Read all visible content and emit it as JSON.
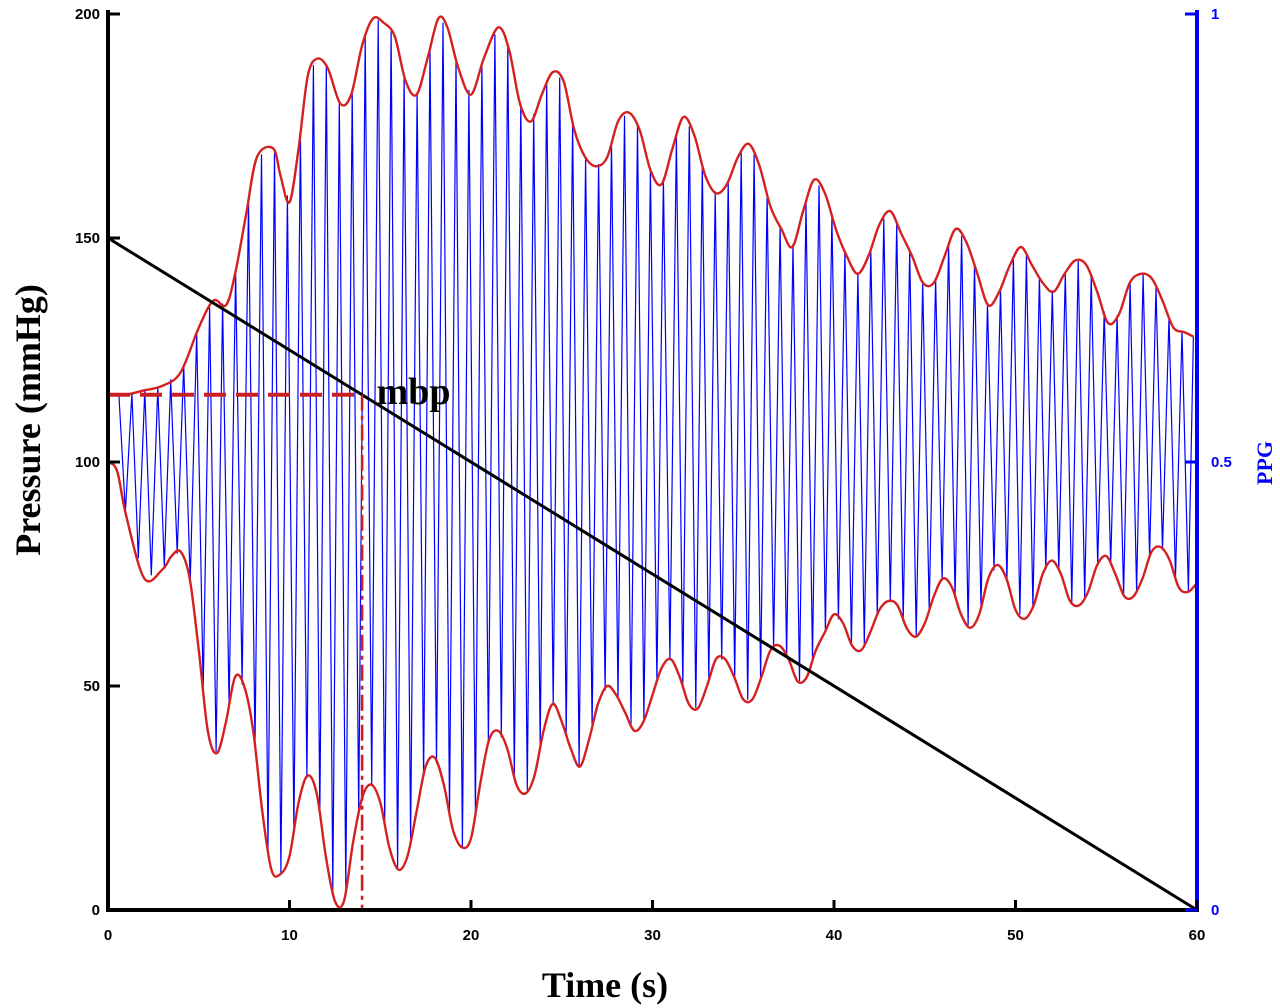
{
  "chart_data": {
    "type": "line",
    "title": "",
    "xlabel": "Time (s)",
    "ylabel": "Pressure (mmHg)",
    "y2label": "PPG",
    "xlim": [
      0,
      60
    ],
    "ylim": [
      0,
      200
    ],
    "y2lim": [
      0,
      1
    ],
    "x_ticks": [
      0,
      10,
      20,
      30,
      40,
      50,
      60
    ],
    "y_ticks": [
      0,
      50,
      100,
      150,
      200
    ],
    "y2_ticks": [
      0,
      0.5,
      1
    ],
    "grid": false,
    "annotations": [
      {
        "text": "mbp",
        "x": 14.8,
        "y": 113
      }
    ],
    "colors": {
      "ppg": "#0000ff",
      "envelope": "#d42020",
      "cuff_pressure": "#000000",
      "mbp_marker": "#cc1f1f",
      "left_axis": "#000000",
      "right_axis": "#0000ff"
    },
    "series": [
      {
        "type": "line",
        "x": [
          0,
          60
        ],
        "y": [
          150,
          0
        ]
      },
      {
        "type": "line",
        "x": [
          0,
          0.5,
          1,
          2,
          3,
          4,
          5,
          5.8,
          6.5,
          7,
          7.6,
          8.2,
          9.1,
          9.5,
          10,
          10.5,
          11,
          11.5,
          12.1,
          12.8,
          13.4,
          14,
          14.6,
          15.2,
          15.8,
          16.4,
          17,
          17.6,
          18.2,
          18.7,
          19.3,
          20,
          20.7,
          21.5,
          22.1,
          22.7,
          23.3,
          23.9,
          24.5,
          25.1,
          25.7,
          26.3,
          26.9,
          27.5,
          28.1,
          28.7,
          29.3,
          29.9,
          30.5,
          31.1,
          31.7,
          32.3,
          32.9,
          33.5,
          34.1,
          34.7,
          35.3,
          35.9,
          36.5,
          37.1,
          37.7,
          38.3,
          38.9,
          39.5,
          40.1,
          40.7,
          41.3,
          41.9,
          42.5,
          43.1,
          43.7,
          44.3,
          44.9,
          45.5,
          46.1,
          46.7,
          47.3,
          47.9,
          48.5,
          49.1,
          49.7,
          50.3,
          50.9,
          51.5,
          52.1,
          52.7,
          53.3,
          53.9,
          54.5,
          55.1,
          55.7,
          56.3,
          56.9,
          57.5,
          58.1,
          58.7,
          59.3,
          59.8
        ],
        "y": [
          115,
          115,
          115,
          116,
          117,
          120,
          130,
          136,
          135,
          142,
          155,
          168,
          170,
          164,
          158,
          170,
          186,
          190,
          188,
          180,
          182,
          193,
          199,
          198,
          195,
          185,
          182,
          190,
          199,
          197,
          188,
          182,
          190,
          197,
          192,
          180,
          176,
          182,
          187,
          185,
          174,
          168,
          166,
          168,
          176,
          178,
          174,
          165,
          162,
          170,
          177,
          173,
          164,
          160,
          162,
          168,
          171,
          166,
          157,
          152,
          148,
          156,
          163,
          160,
          152,
          146,
          142,
          146,
          153,
          156,
          151,
          146,
          140,
          140,
          146,
          152,
          149,
          142,
          135,
          138,
          144,
          148,
          144,
          140,
          138,
          142,
          145,
          144,
          138,
          131,
          133,
          140,
          142,
          141,
          136,
          130,
          129,
          128
        ]
      },
      {
        "type": "line",
        "x": [
          0,
          0.5,
          1,
          2,
          3,
          3.5,
          4,
          4.5,
          5,
          5.5,
          6,
          6.5,
          7,
          7.5,
          8,
          8.5,
          9,
          9.5,
          10,
          10.5,
          11,
          11.5,
          12,
          12.5,
          13,
          13.5,
          14,
          14.5,
          15,
          15.5,
          16,
          16.5,
          17,
          17.5,
          18,
          18.5,
          19,
          19.5,
          20,
          20.5,
          21,
          21.5,
          22,
          22.5,
          23,
          23.5,
          24,
          24.5,
          25,
          25.5,
          26,
          26.5,
          27,
          27.5,
          28,
          28.5,
          29,
          29.5,
          30,
          30.5,
          31,
          31.5,
          32,
          32.5,
          33,
          33.5,
          34,
          34.5,
          35,
          35.5,
          36,
          36.5,
          37,
          37.5,
          38,
          38.5,
          39,
          39.5,
          40,
          40.5,
          41,
          41.5,
          42,
          42.5,
          43,
          43.5,
          44,
          44.5,
          45,
          45.5,
          46,
          46.5,
          47,
          47.5,
          48,
          48.5,
          49,
          49.5,
          50,
          50.5,
          51,
          51.5,
          52,
          52.5,
          53,
          53.5,
          54,
          54.5,
          55,
          55.5,
          56,
          56.5,
          57,
          57.5,
          58,
          58.5,
          59,
          59.5,
          60
        ],
        "y": [
          100,
          98,
          88,
          74,
          76,
          79,
          80,
          74,
          58,
          40,
          35,
          42,
          52,
          50,
          40,
          22,
          9,
          8,
          12,
          24,
          30,
          26,
          12,
          2,
          2,
          15,
          25,
          28,
          24,
          14,
          9,
          12,
          22,
          32,
          34,
          28,
          18,
          14,
          16,
          28,
          38,
          40,
          36,
          28,
          26,
          30,
          40,
          46,
          42,
          36,
          32,
          38,
          46,
          50,
          48,
          44,
          40,
          42,
          48,
          54,
          56,
          52,
          46,
          45,
          50,
          56,
          56,
          52,
          47,
          47,
          52,
          58,
          59,
          56,
          51,
          52,
          58,
          62,
          66,
          64,
          59,
          58,
          62,
          67,
          69,
          68,
          63,
          61,
          64,
          70,
          74,
          72,
          66,
          63,
          66,
          74,
          77,
          74,
          67,
          65,
          68,
          75,
          78,
          75,
          69,
          68,
          71,
          77,
          79,
          75,
          70,
          70,
          74,
          80,
          81,
          78,
          72,
          71,
          73
        ]
      },
      {
        "type": "line",
        "x": [
          0,
          14
        ],
        "y": [
          115,
          115
        ]
      },
      {
        "type": "line",
        "x": [
          14,
          14
        ],
        "y": [
          115,
          0
        ]
      }
    ]
  }
}
